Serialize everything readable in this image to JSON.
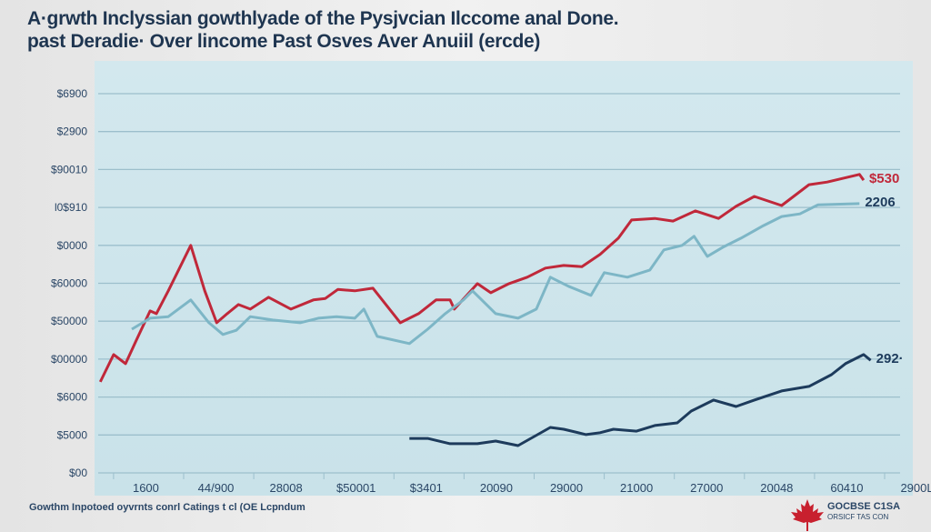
{
  "chart_data": {
    "type": "line",
    "title": [
      "A·grwth Inclyssian gowthlyade of the Pysjvcian Ilccome anal Done.",
      "past Deradie· Over lincome Past Osves  Aver Anuiil (ercde)"
    ],
    "y_tick_labels": [
      "$00",
      "$5000",
      "$6000",
      "$00000",
      "$50000",
      "$60000",
      "$0000",
      "l0$910",
      "$90010",
      "$2900",
      "$6900"
    ],
    "x_tick_labels": [
      "1600",
      "44/900",
      "28008",
      "$50001",
      "$3401",
      "20090",
      "29000",
      "21000",
      "27000",
      "20048",
      "60410",
      "2900L"
    ],
    "x_note": "x values are positions along tick index 0-10 (labels printed are garbled)",
    "ylim": [
      0,
      10
    ],
    "grid": true,
    "series": [
      {
        "color": "#c0283a",
        "end_label": "$530",
        "points": [
          [
            -0.8,
            2.4
          ],
          [
            -0.61,
            3.12
          ],
          [
            -0.44,
            2.88
          ],
          [
            -0.29,
            3.48
          ],
          [
            -0.09,
            4.27
          ],
          [
            0,
            4.2
          ],
          [
            0.17,
            4.8
          ],
          [
            0.49,
            6.0
          ],
          [
            0.69,
            4.8
          ],
          [
            0.86,
            3.96
          ],
          [
            1.01,
            4.2
          ],
          [
            1.17,
            4.44
          ],
          [
            1.34,
            4.32
          ],
          [
            1.6,
            4.63
          ],
          [
            1.92,
            4.32
          ],
          [
            2.24,
            4.56
          ],
          [
            2.41,
            4.6
          ],
          [
            2.59,
            4.84
          ],
          [
            2.83,
            4.8
          ],
          [
            3.09,
            4.87
          ],
          [
            3.48,
            3.96
          ],
          [
            3.74,
            4.2
          ],
          [
            3.99,
            4.56
          ],
          [
            4.19,
            4.56
          ],
          [
            4.25,
            4.32
          ],
          [
            4.58,
            4.99
          ],
          [
            4.77,
            4.75
          ],
          [
            5.03,
            4.99
          ],
          [
            5.29,
            5.16
          ],
          [
            5.55,
            5.4
          ],
          [
            5.81,
            5.47
          ],
          [
            6.07,
            5.44
          ],
          [
            6.33,
            5.76
          ],
          [
            6.59,
            6.19
          ],
          [
            6.78,
            6.67
          ],
          [
            7.11,
            6.71
          ],
          [
            7.37,
            6.64
          ],
          [
            7.69,
            6.91
          ],
          [
            8.02,
            6.71
          ],
          [
            8.27,
            7.03
          ],
          [
            8.53,
            7.29
          ],
          [
            8.92,
            7.05
          ],
          [
            9.31,
            7.6
          ],
          [
            9.57,
            7.67
          ],
          [
            10.03,
            7.87
          ],
          [
            10.09,
            7.72
          ]
        ]
      },
      {
        "color": "#7db6c6",
        "end_label": "2206",
        "points": [
          [
            -0.35,
            3.79
          ],
          [
            -0.09,
            4.08
          ],
          [
            0.17,
            4.12
          ],
          [
            0.49,
            4.56
          ],
          [
            0.75,
            3.96
          ],
          [
            0.95,
            3.65
          ],
          [
            1.14,
            3.76
          ],
          [
            1.34,
            4.12
          ],
          [
            1.66,
            4.03
          ],
          [
            2.05,
            3.96
          ],
          [
            2.31,
            4.08
          ],
          [
            2.57,
            4.12
          ],
          [
            2.83,
            4.08
          ],
          [
            2.96,
            4.32
          ],
          [
            3.15,
            3.6
          ],
          [
            3.61,
            3.41
          ],
          [
            3.87,
            3.79
          ],
          [
            4.12,
            4.2
          ],
          [
            4.38,
            4.56
          ],
          [
            4.51,
            4.8
          ],
          [
            4.84,
            4.2
          ],
          [
            5.16,
            4.08
          ],
          [
            5.42,
            4.32
          ],
          [
            5.62,
            5.16
          ],
          [
            5.88,
            4.92
          ],
          [
            6.2,
            4.68
          ],
          [
            6.39,
            5.28
          ],
          [
            6.72,
            5.16
          ],
          [
            7.04,
            5.35
          ],
          [
            7.24,
            5.88
          ],
          [
            7.5,
            6.0
          ],
          [
            7.67,
            6.24
          ],
          [
            7.86,
            5.71
          ],
          [
            8.08,
            5.95
          ],
          [
            8.34,
            6.19
          ],
          [
            8.66,
            6.52
          ],
          [
            8.92,
            6.76
          ],
          [
            9.18,
            6.83
          ],
          [
            9.44,
            7.07
          ],
          [
            10.03,
            7.1
          ]
        ]
      },
      {
        "color": "#1d3b5c",
        "end_label": "292·",
        "points": [
          [
            3.61,
            0.91
          ],
          [
            3.87,
            0.91
          ],
          [
            4.19,
            0.77
          ],
          [
            4.58,
            0.77
          ],
          [
            4.84,
            0.84
          ],
          [
            5.16,
            0.72
          ],
          [
            5.62,
            1.2
          ],
          [
            5.81,
            1.15
          ],
          [
            6.13,
            1.01
          ],
          [
            6.33,
            1.06
          ],
          [
            6.52,
            1.15
          ],
          [
            6.85,
            1.1
          ],
          [
            7.11,
            1.25
          ],
          [
            7.43,
            1.32
          ],
          [
            7.63,
            1.63
          ],
          [
            7.95,
            1.92
          ],
          [
            8.27,
            1.75
          ],
          [
            8.53,
            1.92
          ],
          [
            8.92,
            2.16
          ],
          [
            9.31,
            2.28
          ],
          [
            9.63,
            2.59
          ],
          [
            9.83,
            2.88
          ],
          [
            10.09,
            3.12
          ],
          [
            10.19,
            2.97
          ]
        ]
      }
    ]
  },
  "footer": {
    "source": "Gowthm Inpotoed oyvrnts conrl Catings t cl (OE Lcpndum"
  },
  "logo": {
    "name": "GOCBSE C1SA",
    "sub": "ORSICF TAS CON",
    "icon": "maple-leaf-icon",
    "color": "#c8202e"
  }
}
